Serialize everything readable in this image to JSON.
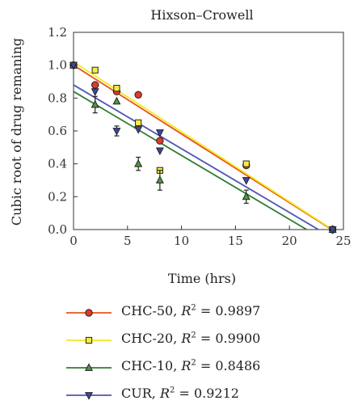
{
  "chart_data": {
    "type": "scatter",
    "title": "Hixson–Crowell",
    "xlabel": "Time (hrs)",
    "ylabel": "Cubic root of drug remaning",
    "xlim": [
      0,
      25
    ],
    "ylim": [
      0,
      1.2
    ],
    "xticks": [
      "0",
      "5",
      "10",
      "15",
      "20",
      "25"
    ],
    "yticks": [
      "0.0",
      "0.2",
      "0.4",
      "0.6",
      "0.8",
      "1.0",
      "1.2"
    ],
    "grid": false,
    "legend_position": "bottom",
    "series": [
      {
        "name": "CHC-50",
        "r2_label": "R",
        "r2_value": " = 0.9897",
        "marker": "circle",
        "color": "#e8541e",
        "marker_fill": "#e03a2a",
        "points": [
          {
            "x": 0,
            "y": 1.0
          },
          {
            "x": 2,
            "y": 0.88
          },
          {
            "x": 4,
            "y": 0.84
          },
          {
            "x": 6,
            "y": 0.82
          },
          {
            "x": 8,
            "y": 0.54
          },
          {
            "x": 16,
            "y": 0.39
          },
          {
            "x": 24,
            "y": 0.0
          }
        ],
        "fit": {
          "intercept": 1.0,
          "slope": -0.0418
        }
      },
      {
        "name": "CHC-20",
        "r2_label": "R",
        "r2_value": " = 0.9900",
        "marker": "square",
        "color": "#f2ea1d",
        "marker_fill": "#f5ee3a",
        "points": [
          {
            "x": 0,
            "y": 1.0
          },
          {
            "x": 2,
            "y": 0.97
          },
          {
            "x": 4,
            "y": 0.86
          },
          {
            "x": 6,
            "y": 0.65
          },
          {
            "x": 8,
            "y": 0.36
          },
          {
            "x": 16,
            "y": 0.4
          },
          {
            "x": 24,
            "y": 0.0
          }
        ],
        "fit": {
          "intercept": 1.02,
          "slope": -0.0425
        }
      },
      {
        "name": "CHC-10",
        "r2_label": "R",
        "r2_value": " = 0.8486",
        "marker": "triangle-up",
        "color": "#2e7d32",
        "marker_fill": "#4c9a3c",
        "points": [
          {
            "x": 0,
            "y": 1.0
          },
          {
            "x": 2,
            "y": 0.76,
            "err": 0.05
          },
          {
            "x": 4,
            "y": 0.78
          },
          {
            "x": 6,
            "y": 0.4,
            "err": 0.04
          },
          {
            "x": 8,
            "y": 0.3,
            "err": 0.06
          },
          {
            "x": 16,
            "y": 0.2,
            "err": 0.04
          },
          {
            "x": 24,
            "y": 0.0
          }
        ],
        "fit": {
          "intercept": 0.84,
          "slope": -0.0389
        }
      },
      {
        "name": "CUR",
        "r2_label": "R",
        "r2_value": " = 0.9212",
        "marker": "triangle-down",
        "color": "#4f55b3",
        "marker_fill": "#3f46a8",
        "points": [
          {
            "x": 0,
            "y": 1.0
          },
          {
            "x": 2,
            "y": 0.84
          },
          {
            "x": 4,
            "y": 0.6,
            "err": 0.03
          },
          {
            "x": 6,
            "y": 0.61
          },
          {
            "x": 8,
            "y": 0.59
          },
          {
            "x": 8,
            "y": 0.48
          },
          {
            "x": 16,
            "y": 0.3
          },
          {
            "x": 24,
            "y": 0.0
          }
        ],
        "fit": {
          "intercept": 0.88,
          "slope": -0.0388
        }
      }
    ]
  }
}
